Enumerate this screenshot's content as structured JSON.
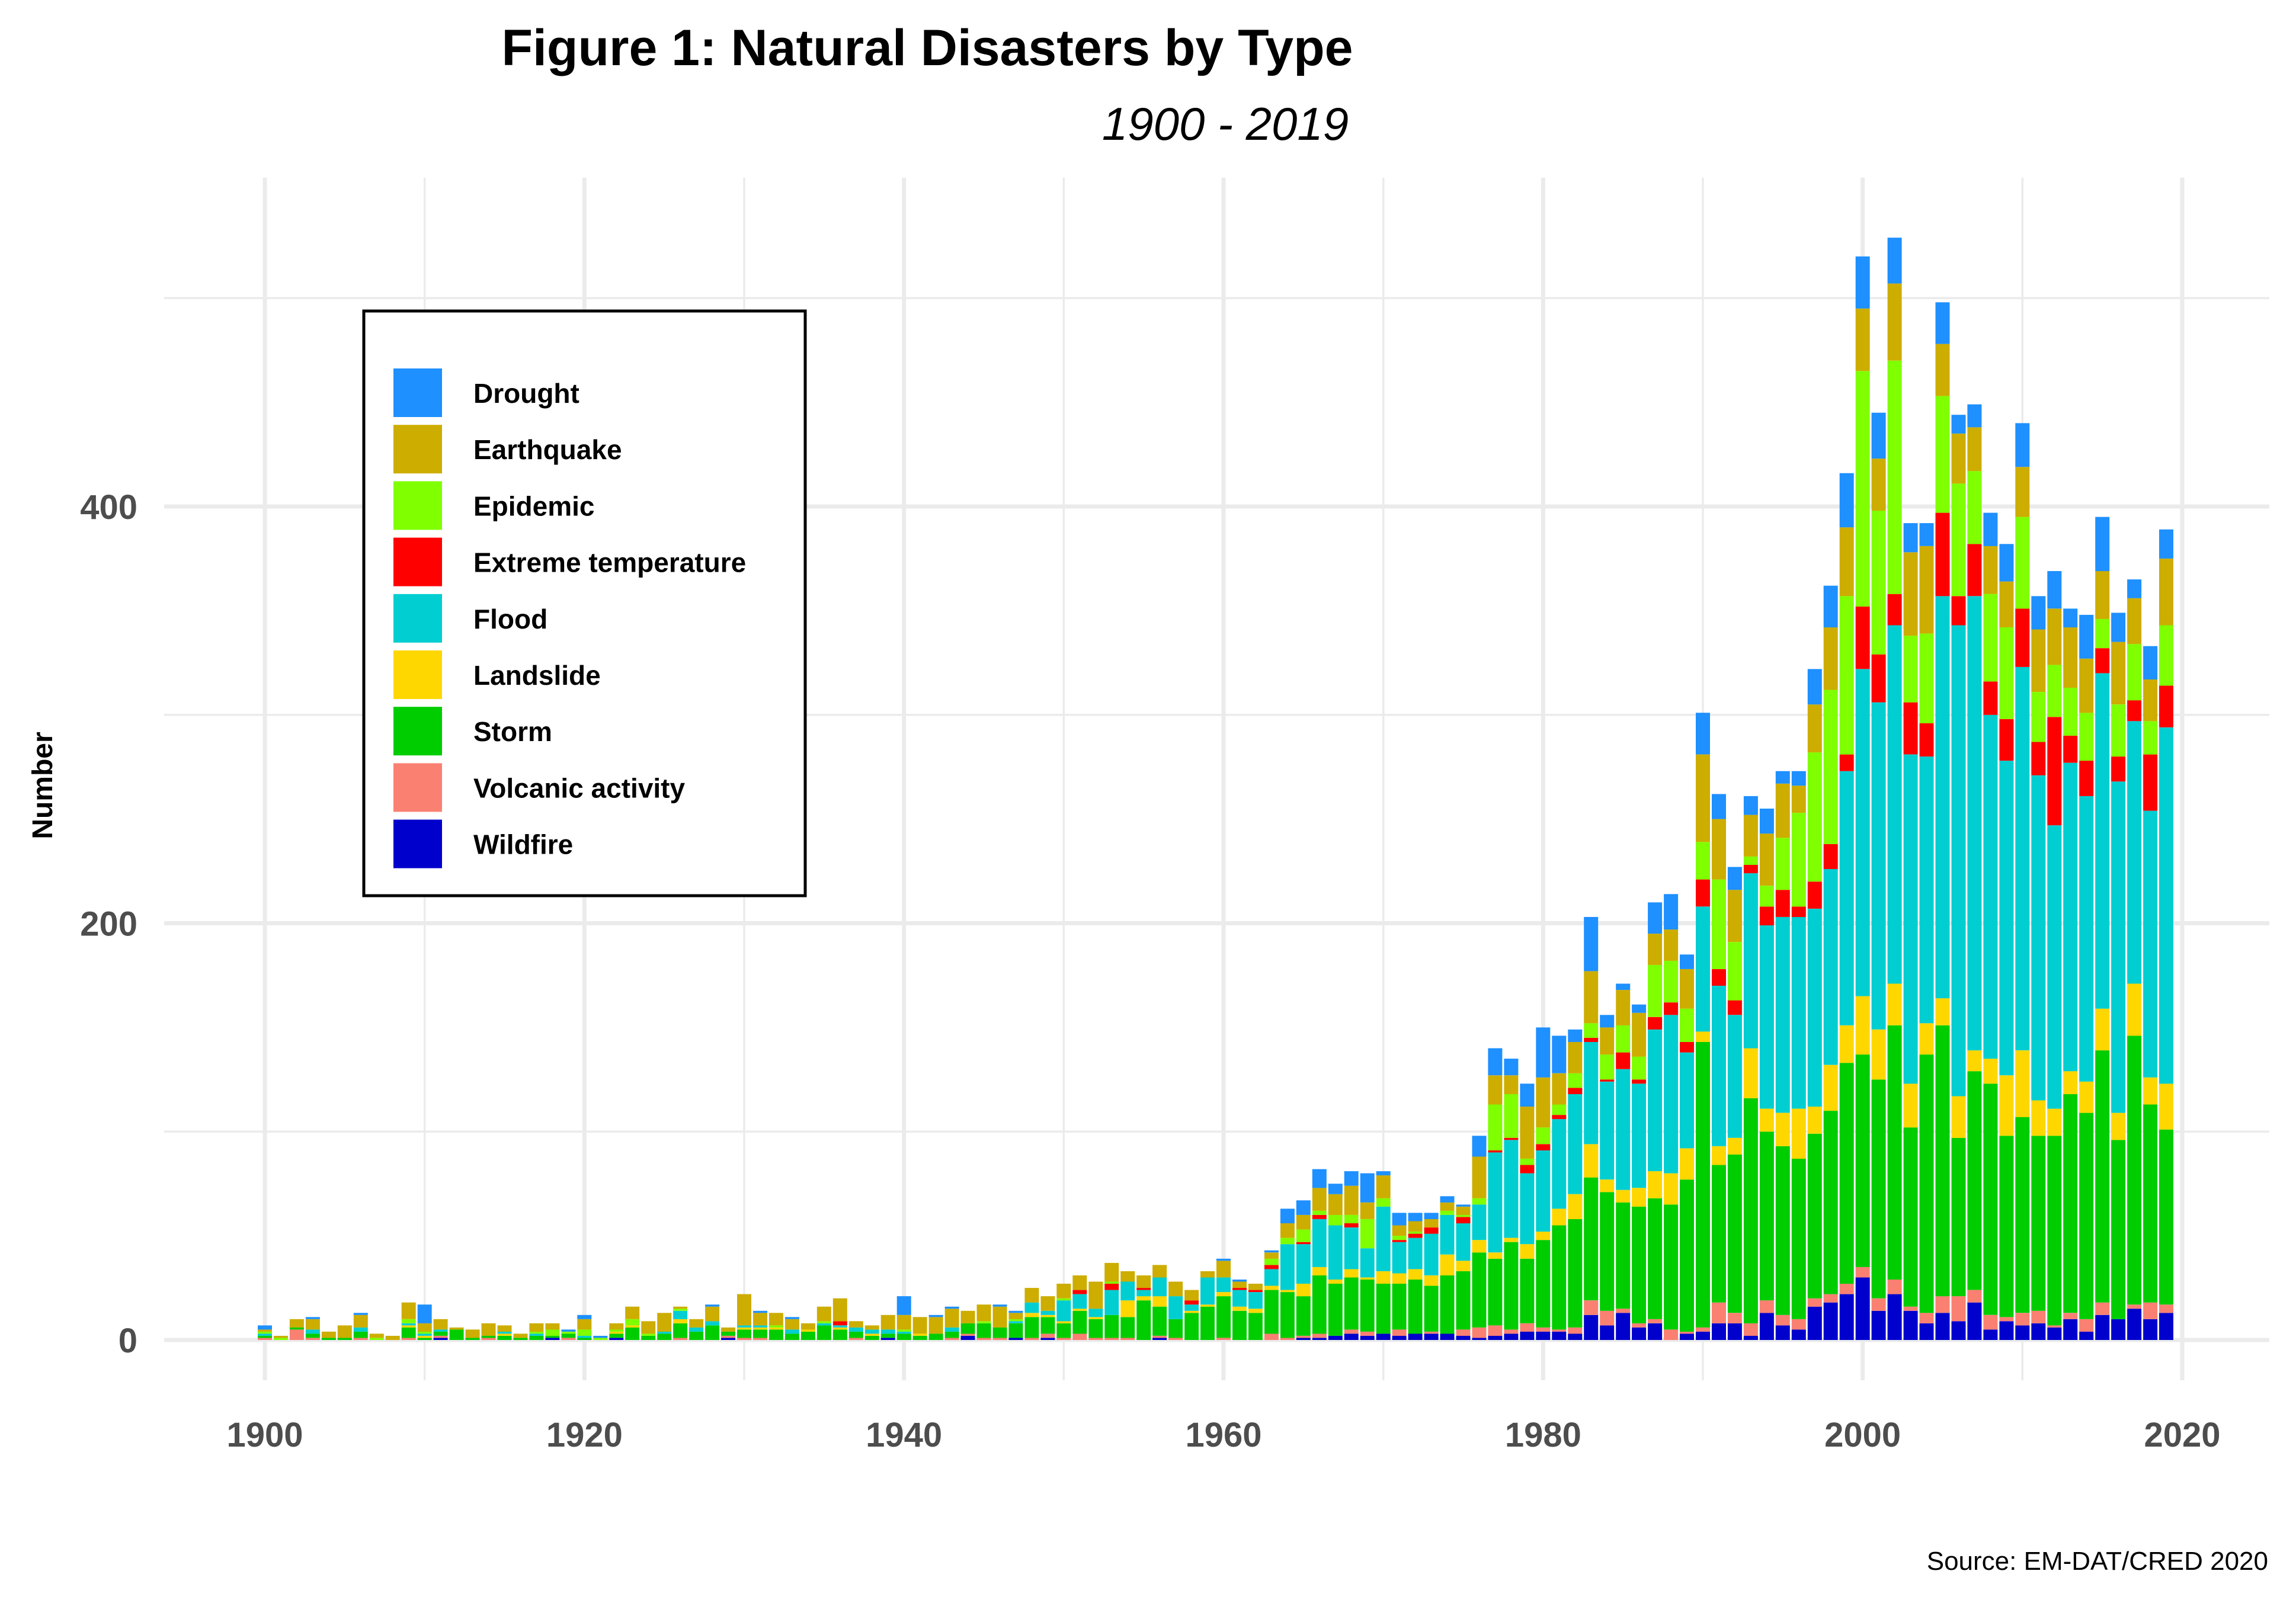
{
  "chart_data": {
    "type": "bar",
    "stacked": true,
    "title": "Figure 1: Natural Disasters by Type",
    "subtitle": "1900 - 2019",
    "xlabel": "",
    "ylabel": "Number",
    "caption": "Source: EM-DAT/CRED 2020",
    "xlim": [
      1895,
      2025
    ],
    "ylim": [
      -20,
      560
    ],
    "x_ticks": [
      1900,
      1920,
      1940,
      1960,
      1980,
      2000,
      2020
    ],
    "x_tick_labels": [
      "1900",
      "1920",
      "1940",
      "1960",
      "1980",
      "2000",
      "2020"
    ],
    "y_ticks": [
      0,
      200,
      400
    ],
    "y_tick_labels": [
      "0",
      "200",
      "400"
    ],
    "y_minor_gridlines": [
      100,
      300,
      500
    ],
    "grid": true,
    "legend_position": "top-left",
    "stack_order_bottom_to_top": [
      "Wildfire",
      "Volcanic activity",
      "Storm",
      "Landslide",
      "Flood",
      "Extreme temperature",
      "Epidemic",
      "Earthquake",
      "Drought"
    ],
    "legend": [
      {
        "name": "Drought",
        "color": "#1E90FF"
      },
      {
        "name": "Earthquake",
        "color": "#CDAD00"
      },
      {
        "name": "Epidemic",
        "color": "#7FFF00"
      },
      {
        "name": "Extreme temperature",
        "color": "#FF0000"
      },
      {
        "name": "Flood",
        "color": "#00CED1"
      },
      {
        "name": "Landslide",
        "color": "#FFD700"
      },
      {
        "name": "Storm",
        "color": "#00CD00"
      },
      {
        "name": "Volcanic activity",
        "color": "#FA8072"
      },
      {
        "name": "Wildfire",
        "color": "#0000CD"
      }
    ],
    "x": [
      1900,
      1901,
      1902,
      1903,
      1904,
      1905,
      1906,
      1907,
      1908,
      1909,
      1910,
      1911,
      1912,
      1913,
      1914,
      1915,
      1916,
      1917,
      1918,
      1919,
      1920,
      1921,
      1922,
      1923,
      1924,
      1925,
      1926,
      1927,
      1928,
      1929,
      1930,
      1931,
      1932,
      1933,
      1934,
      1935,
      1936,
      1937,
      1938,
      1939,
      1940,
      1941,
      1942,
      1943,
      1944,
      1945,
      1946,
      1947,
      1948,
      1949,
      1950,
      1951,
      1952,
      1953,
      1954,
      1955,
      1956,
      1957,
      1958,
      1959,
      1960,
      1961,
      1962,
      1963,
      1964,
      1965,
      1966,
      1967,
      1968,
      1969,
      1970,
      1971,
      1972,
      1973,
      1974,
      1975,
      1976,
      1977,
      1978,
      1979,
      1980,
      1981,
      1982,
      1983,
      1984,
      1985,
      1986,
      1987,
      1988,
      1989,
      1990,
      1991,
      1992,
      1993,
      1994,
      1995,
      1996,
      1997,
      1998,
      1999,
      2000,
      2001,
      2002,
      2003,
      2004,
      2005,
      2006,
      2007,
      2008,
      2009,
      2010,
      2011,
      2012,
      2013,
      2014,
      2015,
      2016,
      2017,
      2018,
      2019
    ],
    "series": [
      {
        "name": "Wildfire",
        "values": [
          0,
          0,
          0,
          0,
          0,
          0,
          0,
          0,
          0,
          0,
          0,
          1,
          0,
          0,
          0,
          0,
          0,
          0,
          1,
          0,
          0,
          0,
          1,
          0,
          0,
          0,
          0,
          0,
          0,
          1,
          0,
          0,
          0,
          0,
          0,
          0,
          0,
          0,
          0,
          1,
          0,
          0,
          0,
          0,
          2,
          0,
          0,
          1,
          0,
          1,
          0,
          0,
          0,
          0,
          0,
          0,
          1,
          0,
          0,
          0,
          0,
          0,
          0,
          0,
          0,
          1,
          1,
          2,
          3,
          2,
          3,
          2,
          3,
          3,
          3,
          2,
          1,
          2,
          3,
          4,
          4,
          4,
          3,
          12,
          7,
          13,
          6,
          8,
          0,
          3,
          4,
          8,
          8,
          2,
          13,
          7,
          5,
          16,
          18,
          22,
          30,
          14,
          22,
          14,
          8,
          13,
          9,
          18,
          5,
          9,
          7,
          8,
          6,
          10,
          4,
          12,
          10,
          15,
          10,
          13
        ]
      },
      {
        "name": "Volcanic activity",
        "values": [
          1,
          0,
          5,
          1,
          0,
          0,
          1,
          0,
          0,
          1,
          0,
          1,
          0,
          0,
          1,
          0,
          0,
          0,
          0,
          1,
          0,
          0,
          0,
          0,
          0,
          0,
          1,
          0,
          0,
          1,
          1,
          1,
          0,
          0,
          0,
          0,
          0,
          1,
          0,
          0,
          0,
          0,
          0,
          1,
          1,
          1,
          1,
          0,
          1,
          2,
          1,
          3,
          1,
          1,
          1,
          0,
          1,
          1,
          0,
          0,
          1,
          0,
          0,
          3,
          1,
          1,
          2,
          0,
          2,
          2,
          0,
          3,
          0,
          1,
          0,
          3,
          5,
          5,
          2,
          4,
          2,
          1,
          3,
          7,
          7,
          2,
          2,
          2,
          5,
          1,
          2,
          10,
          5,
          6,
          6,
          5,
          5,
          4,
          4,
          5,
          5,
          6,
          7,
          2,
          5,
          8,
          12,
          6,
          7,
          2,
          6,
          6,
          1,
          3,
          6,
          6,
          0,
          2,
          8,
          4
        ]
      },
      {
        "name": "Storm",
        "values": [
          1,
          0,
          1,
          2,
          1,
          1,
          3,
          0,
          0,
          5,
          1,
          2,
          5,
          1,
          1,
          2,
          1,
          2,
          1,
          2,
          1,
          0,
          2,
          6,
          2,
          3,
          7,
          4,
          7,
          2,
          4,
          4,
          5,
          3,
          4,
          7,
          5,
          3,
          2,
          2,
          3,
          2,
          3,
          3,
          5,
          7,
          5,
          7,
          10,
          8,
          7,
          11,
          9,
          11,
          10,
          19,
          14,
          9,
          13,
          16,
          20,
          14,
          13,
          21,
          22,
          19,
          28,
          25,
          25,
          25,
          24,
          22,
          26,
          22,
          28,
          28,
          36,
          32,
          42,
          31,
          42,
          50,
          52,
          59,
          57,
          51,
          56,
          58,
          60,
          73,
          137,
          66,
          76,
          108,
          81,
          81,
          77,
          79,
          88,
          106,
          102,
          105,
          122,
          86,
          124,
          130,
          76,
          105,
          111,
          87,
          94,
          84,
          91,
          105,
          99,
          121,
          86,
          129,
          95,
          84
        ]
      },
      {
        "name": "Landslide",
        "values": [
          0,
          0,
          0,
          0,
          0,
          0,
          0,
          0,
          0,
          1,
          1,
          0,
          0,
          0,
          0,
          1,
          0,
          0,
          0,
          0,
          0,
          0,
          1,
          1,
          0,
          0,
          2,
          0,
          0,
          0,
          1,
          1,
          1,
          0,
          1,
          0,
          1,
          0,
          1,
          0,
          0,
          1,
          0,
          0,
          0,
          0,
          0,
          0,
          2,
          1,
          1,
          1,
          1,
          0,
          8,
          2,
          5,
          0,
          1,
          1,
          2,
          2,
          2,
          2,
          1,
          6,
          4,
          2,
          4,
          1,
          6,
          5,
          5,
          5,
          10,
          5,
          6,
          3,
          2,
          7,
          4,
          8,
          12,
          16,
          6,
          6,
          9,
          13,
          15,
          15,
          5,
          9,
          8,
          24,
          11,
          16,
          24,
          13,
          22,
          18,
          28,
          24,
          20,
          21,
          15,
          13,
          20,
          10,
          12,
          29,
          32,
          17,
          13,
          11,
          15,
          20,
          13,
          25,
          13,
          22
        ]
      },
      {
        "name": "Flood",
        "values": [
          1,
          0,
          0,
          2,
          0,
          0,
          2,
          0,
          0,
          1,
          1,
          1,
          0,
          0,
          0,
          1,
          0,
          1,
          0,
          0,
          1,
          0,
          0,
          0,
          0,
          1,
          4,
          2,
          2,
          0,
          1,
          1,
          0,
          2,
          0,
          1,
          1,
          2,
          2,
          2,
          1,
          0,
          0,
          2,
          0,
          0,
          0,
          1,
          5,
          2,
          10,
          7,
          4,
          12,
          9,
          3,
          9,
          11,
          3,
          13,
          7,
          8,
          8,
          8,
          22,
          19,
          23,
          26,
          20,
          14,
          31,
          15,
          15,
          20,
          19,
          18,
          17,
          48,
          47,
          34,
          39,
          43,
          48,
          49,
          47,
          58,
          50,
          68,
          76,
          46,
          60,
          77,
          59,
          84,
          88,
          94,
          92,
          95,
          94,
          122,
          157,
          157,
          172,
          158,
          128,
          193,
          226,
          218,
          165,
          151,
          184,
          156,
          136,
          148,
          137,
          161,
          159,
          126,
          128,
          171
        ]
      },
      {
        "name": "Extreme temperature",
        "values": [
          0,
          0,
          0,
          0,
          0,
          0,
          0,
          0,
          0,
          0,
          0,
          0,
          0,
          0,
          0,
          0,
          0,
          0,
          0,
          0,
          0,
          0,
          0,
          0,
          0,
          0,
          0,
          0,
          0,
          0,
          0,
          0,
          0,
          0,
          0,
          0,
          2,
          0,
          0,
          0,
          0,
          0,
          0,
          0,
          0,
          0,
          0,
          0,
          0,
          0,
          0,
          2,
          0,
          3,
          0,
          1,
          0,
          0,
          2,
          0,
          0,
          1,
          1,
          2,
          0,
          1,
          2,
          0,
          2,
          0,
          0,
          1,
          2,
          3,
          0,
          3,
          0,
          1,
          1,
          4,
          3,
          2,
          3,
          2,
          1,
          8,
          2,
          6,
          6,
          5,
          13,
          8,
          7,
          4,
          9,
          13,
          5,
          13,
          12,
          8,
          30,
          23,
          15,
          25,
          16,
          40,
          14,
          25,
          16,
          20,
          28,
          16,
          52,
          13,
          17,
          12,
          12,
          10,
          27,
          20
        ]
      },
      {
        "name": "Epidemic",
        "values": [
          1,
          1,
          0,
          0,
          0,
          0,
          0,
          1,
          0,
          2,
          1,
          0,
          0,
          0,
          0,
          0,
          0,
          1,
          3,
          1,
          3,
          1,
          1,
          3,
          1,
          0,
          1,
          0,
          0,
          0,
          0,
          0,
          1,
          0,
          0,
          1,
          0,
          0,
          0,
          0,
          1,
          0,
          0,
          0,
          0,
          1,
          0,
          1,
          0,
          0,
          1,
          0,
          0,
          1,
          0,
          0,
          0,
          0,
          0,
          0,
          0,
          0,
          0,
          3,
          3,
          6,
          2,
          5,
          4,
          14,
          4,
          2,
          1,
          0,
          2,
          1,
          3,
          22,
          21,
          3,
          8,
          5,
          7,
          7,
          12,
          13,
          11,
          25,
          20,
          16,
          18,
          43,
          28,
          4,
          10,
          25,
          45,
          62,
          74,
          76,
          113,
          69,
          112,
          32,
          43,
          56,
          54,
          35,
          42,
          44,
          44,
          24,
          25,
          23,
          23,
          14,
          25,
          27,
          16,
          29
        ]
      },
      {
        "name": "Earthquake",
        "values": [
          1,
          1,
          4,
          5,
          3,
          6,
          6,
          2,
          2,
          8,
          4,
          5,
          1,
          4,
          6,
          3,
          2,
          4,
          3,
          0,
          5,
          0,
          3,
          6,
          6,
          9,
          1,
          4,
          7,
          2,
          15,
          6,
          6,
          5,
          3,
          7,
          11,
          3,
          2,
          7,
          7,
          8,
          8,
          9,
          6,
          8,
          10,
          3,
          7,
          7,
          7,
          7,
          13,
          9,
          5,
          6,
          6,
          7,
          5,
          3,
          8,
          3,
          3,
          3,
          7,
          7,
          11,
          10,
          14,
          8,
          11,
          5,
          5,
          4,
          4,
          4,
          20,
          14,
          9,
          25,
          24,
          15,
          15,
          25,
          13,
          17,
          21,
          15,
          15,
          19,
          42,
          29,
          25,
          20,
          25,
          26,
          13,
          23,
          30,
          33,
          30,
          25,
          37,
          40,
          42,
          25,
          24,
          21,
          23,
          22,
          24,
          30,
          27,
          29,
          26,
          23,
          30,
          22,
          20,
          32
        ]
      },
      {
        "name": "Drought",
        "values": [
          2,
          0,
          0,
          1,
          0,
          0,
          1,
          0,
          0,
          0,
          9,
          0,
          0,
          0,
          0,
          0,
          0,
          0,
          0,
          1,
          2,
          1,
          0,
          0,
          0,
          0,
          0,
          0,
          1,
          0,
          0,
          1,
          0,
          1,
          0,
          0,
          0,
          0,
          0,
          0,
          9,
          0,
          1,
          1,
          0,
          0,
          1,
          1,
          0,
          0,
          0,
          0,
          0,
          0,
          0,
          0,
          0,
          0,
          0,
          0,
          1,
          1,
          0,
          1,
          7,
          7,
          9,
          5,
          7,
          14,
          2,
          6,
          4,
          3,
          3,
          1,
          10,
          13,
          8,
          11,
          24,
          18,
          6,
          26,
          6,
          3,
          4,
          15,
          17,
          7,
          20,
          12,
          11,
          9,
          12,
          6,
          7,
          17,
          20,
          26,
          25,
          22,
          22,
          14,
          11,
          20,
          9,
          11,
          16,
          18,
          21,
          16,
          18,
          9,
          21,
          26,
          14,
          9,
          16,
          14
        ]
      }
    ]
  }
}
